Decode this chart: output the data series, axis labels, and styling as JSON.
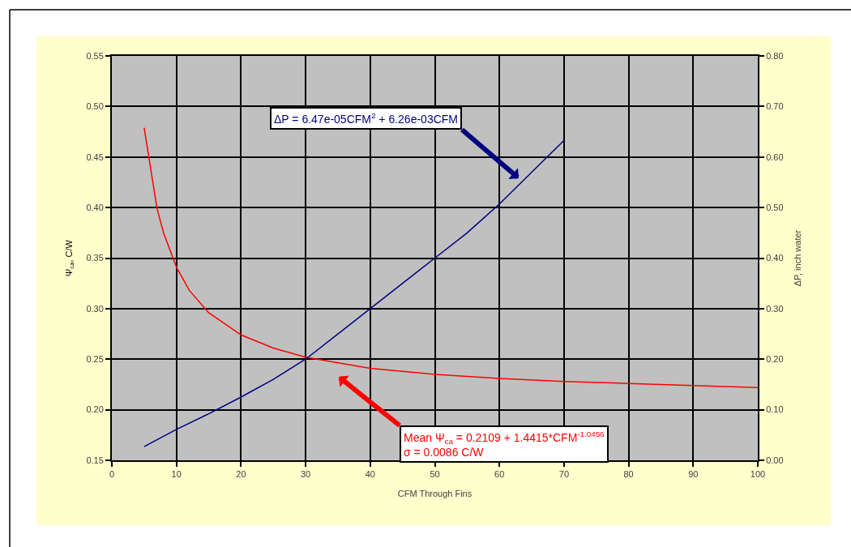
{
  "chart_data": {
    "type": "line",
    "xlabel": "CFM Through Fins",
    "ylabel": "Ψ$_{ca}$, C/W",
    "y2label": "ΔP, inch water",
    "x": [
      5,
      7,
      8,
      10,
      12,
      15,
      20,
      25,
      30,
      40,
      50,
      60,
      70,
      80,
      90,
      100
    ],
    "series": [
      {
        "color": "#ff0000",
        "values": [
          0.479,
          0.399,
          0.375,
          0.341,
          0.318,
          0.296,
          0.274,
          0.261,
          0.252,
          0.241,
          0.235,
          0.231,
          0.228,
          0.226,
          0.224,
          0.222
        ]
      },
      {
        "color": "#000080",
        "axis": "y2",
        "x": [
          5,
          10,
          15,
          20,
          25,
          30,
          35,
          40,
          45,
          50,
          55,
          60,
          65,
          70
        ],
        "values": [
          0.027,
          0.061,
          0.092,
          0.125,
          0.16,
          0.2,
          0.25,
          0.3,
          0.35,
          0.4,
          0.45,
          0.507,
          0.57,
          0.633
        ]
      }
    ],
    "annotations": [
      "Mean Ψ$_{ca}$ = 0.2109 + 1.4415*CFM$^{-1.0456}$\nσ = 0.0086 C/W",
      "ΔP = 6.47e-05CFM$^{2}$ + 6.26e-03CFM"
    ],
    "xlim": [
      0,
      100
    ],
    "xticks": [
      0,
      10,
      20,
      30,
      40,
      50,
      60,
      70,
      80,
      90,
      100
    ],
    "ylim": [
      0.15,
      0.55
    ],
    "yticks": [
      0.15,
      {
        "value": 0.2,
        "label": "0.20"
      },
      0.25,
      {
        "value": 0.3,
        "label": "0.30"
      },
      0.35,
      {
        "value": 0.4,
        "label": "0.40"
      },
      0.45,
      {
        "value": 0.5,
        "label": "0.50"
      },
      0.55
    ],
    "y2lim": [
      0,
      0.8
    ],
    "y2ticks": [
      {
        "value": 0,
        "label": "0.00"
      },
      {
        "value": 0.1,
        "label": "0.10"
      },
      {
        "value": 0.2,
        "label": "0.20"
      },
      {
        "value": 0.3,
        "label": "0.30"
      },
      {
        "value": 0.4,
        "label": "0.40"
      },
      {
        "value": 0.5,
        "label": "0.50"
      },
      {
        "value": 0.6,
        "label": "0.60"
      },
      {
        "value": 0.7,
        "label": "0.70"
      },
      {
        "value": 0.8,
        "label": "0.80"
      }
    ],
    "grid": true,
    "marker": "none",
    "line_style": "solid",
    "legend": false
  }
}
